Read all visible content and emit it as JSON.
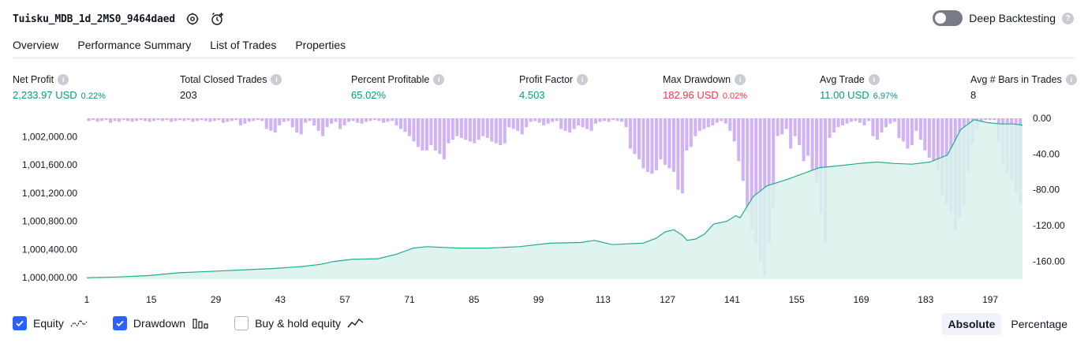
{
  "header": {
    "title": "Tuisku_MDB_1d_2MS0_9464daed",
    "settings_icon": "gear-icon",
    "add_alert_icon": "clock-plus-icon"
  },
  "deep_backtesting": {
    "label": "Deep Backtesting",
    "enabled": false,
    "help": "?"
  },
  "tabs": [
    {
      "label": "Overview",
      "active": true
    },
    {
      "label": "Performance Summary",
      "active": false
    },
    {
      "label": "List of Trades",
      "active": false
    },
    {
      "label": "Properties",
      "active": false
    }
  ],
  "metrics": {
    "net_profit": {
      "label": "Net Profit",
      "value": "2,233.97 USD",
      "pct": "0.22%",
      "color": "#089981"
    },
    "closed_trades": {
      "label": "Total Closed Trades",
      "value": "203",
      "color": "#131722"
    },
    "percent_profitable": {
      "label": "Percent Profitable",
      "value": "65.02%",
      "color": "#089981"
    },
    "profit_factor": {
      "label": "Profit Factor",
      "value": "4.503",
      "color": "#089981"
    },
    "max_drawdown": {
      "label": "Max Drawdown",
      "value": "182.96 USD",
      "pct": "0.02%",
      "color": "#f23645"
    },
    "avg_trade": {
      "label": "Avg Trade",
      "value": "11.00 USD",
      "pct": "6.97%",
      "color": "#089981"
    },
    "avg_bars": {
      "label": "Avg # Bars in Trades",
      "value": "8",
      "color": "#131722"
    },
    "info_glyph": "i"
  },
  "chart_data": {
    "type": "area",
    "x_ticks": [
      "1",
      "15",
      "29",
      "43",
      "57",
      "71",
      "85",
      "99",
      "113",
      "127",
      "141",
      "155",
      "169",
      "183",
      "197"
    ],
    "x_range": [
      1,
      204
    ],
    "equity": {
      "ylim": [
        999980,
        1002260
      ],
      "y_ticks": [
        "1,000,000.00",
        "1,000,400.00",
        "1,000,800.00",
        "1,001,200.00",
        "1,001,600.00",
        "1,002,000.00"
      ],
      "points": [
        [
          1,
          1000000
        ],
        [
          8,
          1000010
        ],
        [
          15,
          1000030
        ],
        [
          22,
          1000070
        ],
        [
          29,
          1000090
        ],
        [
          36,
          1000110
        ],
        [
          43,
          1000130
        ],
        [
          50,
          1000160
        ],
        [
          54,
          1000190
        ],
        [
          57,
          1000230
        ],
        [
          61,
          1000260
        ],
        [
          67,
          1000270
        ],
        [
          71,
          1000330
        ],
        [
          75,
          1000420
        ],
        [
          78,
          1000440
        ],
        [
          85,
          1000420
        ],
        [
          92,
          1000420
        ],
        [
          99,
          1000440
        ],
        [
          106,
          1000490
        ],
        [
          113,
          1000500
        ],
        [
          116,
          1000530
        ],
        [
          120,
          1000470
        ],
        [
          127,
          1000490
        ],
        [
          130,
          1000560
        ],
        [
          132,
          1000650
        ],
        [
          134,
          1000680
        ],
        [
          136,
          1000600
        ],
        [
          137,
          1000530
        ],
        [
          139,
          1000550
        ],
        [
          141,
          1000620
        ],
        [
          143,
          1000760
        ],
        [
          146,
          1000800
        ],
        [
          148,
          1000880
        ],
        [
          149,
          1000850
        ],
        [
          152,
          1001150
        ],
        [
          155,
          1001300
        ],
        [
          160,
          1001400
        ],
        [
          167,
          1001560
        ],
        [
          172,
          1001590
        ],
        [
          176,
          1001620
        ],
        [
          180,
          1001640
        ],
        [
          184,
          1001620
        ],
        [
          188,
          1001610
        ],
        [
          192,
          1001640
        ],
        [
          196,
          1001740
        ],
        [
          199,
          1002100
        ],
        [
          202,
          1002240
        ],
        [
          205,
          1002200
        ],
        [
          208,
          1002180
        ],
        [
          211,
          1002180
        ],
        [
          213,
          1002160
        ]
      ]
    },
    "drawdown": {
      "ylim": [
        -180,
        0
      ],
      "y_ticks": [
        "0.00",
        "-40.00",
        "-80.00",
        "-120.00",
        "-160.00"
      ],
      "values": [
        -3,
        -2,
        -4,
        -3,
        -2,
        -5,
        -3,
        -4,
        -2,
        -3,
        -4,
        -3,
        -2,
        -3,
        -4,
        -3,
        -2,
        -3,
        -2,
        -4,
        -3,
        -2,
        -3,
        -2,
        -4,
        -3,
        -2,
        -3,
        -4,
        -3,
        -2,
        -5,
        -4,
        -3,
        -2,
        -8,
        -6,
        -4,
        -3,
        -2,
        -3,
        -12,
        -14,
        -16,
        -8,
        -4,
        -3,
        -10,
        -16,
        -18,
        -5,
        -3,
        -8,
        -14,
        -20,
        -10,
        -6,
        -4,
        -12,
        -8,
        -4,
        -3,
        -5,
        -6,
        -4,
        -3,
        -2,
        -3,
        -5,
        -4,
        -3,
        -8,
        -12,
        -15,
        -20,
        -26,
        -32,
        -36,
        -36,
        -30,
        -36,
        -40,
        -46,
        -28,
        -24,
        -20,
        -22,
        -24,
        -26,
        -28,
        -24,
        -20,
        -22,
        -26,
        -28,
        -30,
        -28,
        -10,
        -12,
        -14,
        -18,
        -10,
        -4,
        -3,
        -5,
        -8,
        -6,
        -4,
        -3,
        -12,
        -14,
        -16,
        -12,
        -8,
        -10,
        -12,
        -14,
        -6,
        -4,
        -3,
        -4,
        -2,
        -3,
        -4,
        -10,
        -34,
        -40,
        -46,
        -56,
        -60,
        -62,
        -58,
        -46,
        -52,
        -56,
        -60,
        -80,
        -84,
        -36,
        -32,
        -20,
        -14,
        -12,
        -10,
        -8,
        -5,
        -3,
        -6,
        -14,
        -26,
        -48,
        -70,
        -104,
        -124,
        -140,
        -160,
        -176,
        -140,
        -100,
        -20,
        -18,
        -12,
        -34,
        -20,
        -30,
        -48,
        -42,
        -58,
        -72,
        -106,
        -139,
        -22,
        -16,
        -10,
        -8,
        -6,
        -4,
        -3,
        -5,
        -8,
        -3,
        -20,
        -24,
        -16,
        -10,
        -6,
        -4,
        -22,
        -26,
        -34,
        -30,
        -14,
        -24,
        -36,
        -44,
        -48,
        -58,
        -86,
        -96,
        -106,
        -126,
        -112,
        -98,
        -60,
        -28,
        -12,
        -4,
        -2,
        -2,
        -2,
        -26,
        -50,
        -62,
        -70,
        -84,
        -96
      ],
      "color": "#d1b3f5"
    },
    "equity_line_color": "#22ab94",
    "equity_fill_color": "#d9f2ec"
  },
  "legend": {
    "equity": {
      "label": "Equity",
      "checked": true
    },
    "drawdown": {
      "label": "Drawdown",
      "checked": true
    },
    "buy_hold": {
      "label": "Buy & hold equity",
      "checked": false
    }
  },
  "modes": {
    "absolute": "Absolute",
    "percentage": "Percentage",
    "active": "absolute"
  }
}
